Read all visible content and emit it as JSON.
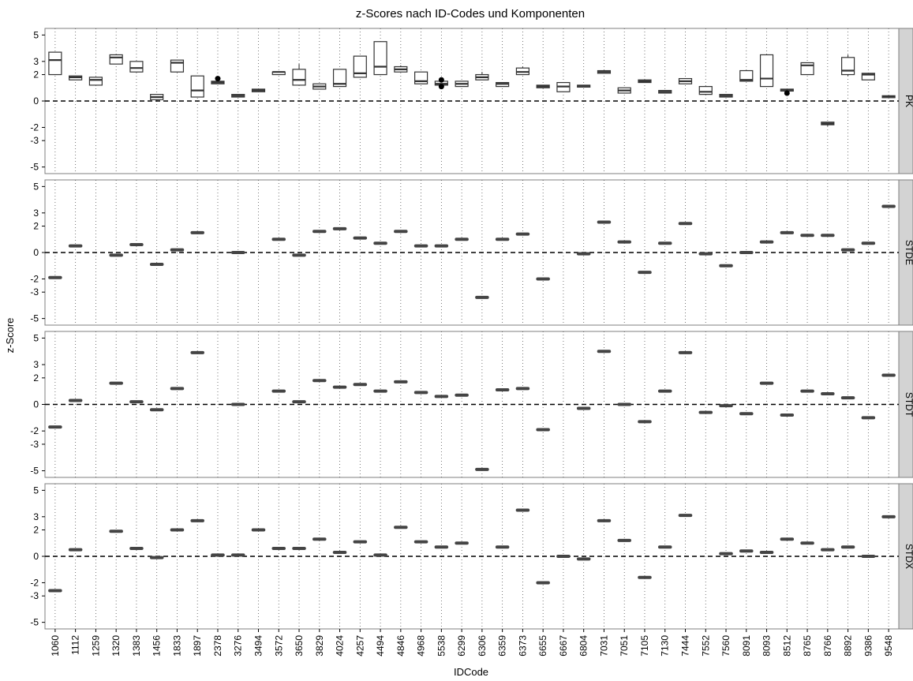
{
  "chart_data": {
    "type": "boxplot",
    "title": "z-Scores nach ID-Codes und Komponenten",
    "xlabel": "IDCode",
    "ylabel": "z-Score",
    "ylim": [
      -5.5,
      5.5
    ],
    "yticks": [
      5,
      3,
      2,
      0,
      -2,
      -3,
      -5
    ],
    "reference_line": 0,
    "categories": [
      "1060",
      "1112",
      "1259",
      "1320",
      "1383",
      "1456",
      "1833",
      "1897",
      "2378",
      "3276",
      "3494",
      "3572",
      "3650",
      "3829",
      "4024",
      "4257",
      "4494",
      "4846",
      "4968",
      "5538",
      "6299",
      "6306",
      "6359",
      "6373",
      "6655",
      "6667",
      "6804",
      "7031",
      "7051",
      "7105",
      "7130",
      "7444",
      "7552",
      "7560",
      "8091",
      "8093",
      "8512",
      "8765",
      "8766",
      "8892",
      "9386",
      "9548"
    ],
    "panels": [
      {
        "name": "PK",
        "boxes": [
          {
            "low": 2.0,
            "q1": 2.0,
            "median": 3.1,
            "q3": 3.7,
            "high": 3.7
          },
          {
            "low": 1.6,
            "q1": 1.6,
            "median": 1.8,
            "q3": 1.9,
            "high": 1.9
          },
          {
            "low": 1.2,
            "q1": 1.2,
            "median": 1.6,
            "q3": 1.8,
            "high": 1.8
          },
          {
            "low": 2.8,
            "q1": 2.8,
            "median": 3.3,
            "q3": 3.5,
            "high": 3.5
          },
          {
            "low": 2.2,
            "q1": 2.2,
            "median": 2.5,
            "q3": 3.0,
            "high": 3.0
          },
          {
            "low": 0.0,
            "q1": 0.1,
            "median": 0.3,
            "q3": 0.5,
            "high": 0.5
          },
          {
            "low": 2.2,
            "q1": 2.2,
            "median": 2.9,
            "q3": 3.1,
            "high": 3.1
          },
          {
            "low": 0.3,
            "q1": 0.3,
            "median": 0.8,
            "q3": 1.9,
            "high": 1.9
          },
          {
            "low": 1.3,
            "q1": 1.3,
            "median": 1.4,
            "q3": 1.5,
            "high": 1.5,
            "outliers": [
              1.7
            ]
          },
          {
            "low": 0.3,
            "q1": 0.3,
            "median": 0.4,
            "q3": 0.5,
            "high": 0.5
          },
          {
            "low": 0.7,
            "q1": 0.7,
            "median": 0.8,
            "q3": 0.9,
            "high": 0.9
          },
          {
            "low": 2.0,
            "q1": 2.0,
            "median": 2.2,
            "q3": 2.2,
            "high": 2.2
          },
          {
            "low": 1.2,
            "q1": 1.2,
            "median": 1.6,
            "q3": 2.4,
            "high": 2.8
          },
          {
            "low": 0.9,
            "q1": 0.9,
            "median": 1.1,
            "q3": 1.3,
            "high": 1.3
          },
          {
            "low": 1.1,
            "q1": 1.1,
            "median": 1.3,
            "q3": 2.4,
            "high": 2.4
          },
          {
            "low": 1.8,
            "q1": 1.8,
            "median": 2.1,
            "q3": 3.4,
            "high": 3.4
          },
          {
            "low": 2.0,
            "q1": 2.0,
            "median": 2.6,
            "q3": 4.5,
            "high": 4.5
          },
          {
            "low": 2.2,
            "q1": 2.2,
            "median": 2.4,
            "q3": 2.6,
            "high": 2.7
          },
          {
            "low": 1.3,
            "q1": 1.3,
            "median": 1.5,
            "q3": 2.2,
            "high": 2.2
          },
          {
            "low": 1.2,
            "q1": 1.2,
            "median": 1.3,
            "q3": 1.5,
            "high": 1.5,
            "outliers": [
              1.1,
              1.6
            ]
          },
          {
            "low": 1.1,
            "q1": 1.1,
            "median": 1.3,
            "q3": 1.5,
            "high": 1.5
          },
          {
            "low": 1.6,
            "q1": 1.6,
            "median": 1.8,
            "q3": 2.0,
            "high": 2.2
          },
          {
            "low": 1.1,
            "q1": 1.1,
            "median": 1.3,
            "q3": 1.4,
            "high": 1.4
          },
          {
            "low": 2.0,
            "q1": 2.0,
            "median": 2.2,
            "q3": 2.5,
            "high": 2.6
          },
          {
            "low": 1.0,
            "q1": 1.0,
            "median": 1.1,
            "q3": 1.2,
            "high": 1.2
          },
          {
            "low": 0.7,
            "q1": 0.7,
            "median": 1.1,
            "q3": 1.4,
            "high": 1.4
          },
          {
            "low": 1.1,
            "q1": 1.1,
            "median": 1.15,
            "q3": 1.2,
            "high": 1.2
          },
          {
            "low": 2.1,
            "q1": 2.1,
            "median": 2.2,
            "q3": 2.3,
            "high": 2.3
          },
          {
            "low": 0.6,
            "q1": 0.6,
            "median": 0.8,
            "q3": 1.0,
            "high": 1.0
          },
          {
            "low": 1.4,
            "q1": 1.4,
            "median": 1.5,
            "q3": 1.6,
            "high": 1.6
          },
          {
            "low": 0.6,
            "q1": 0.6,
            "median": 0.7,
            "q3": 0.8,
            "high": 0.8
          },
          {
            "low": 1.3,
            "q1": 1.3,
            "median": 1.5,
            "q3": 1.7,
            "high": 1.7
          },
          {
            "low": 0.5,
            "q1": 0.5,
            "median": 0.7,
            "q3": 1.1,
            "high": 1.1
          },
          {
            "low": 0.3,
            "q1": 0.3,
            "median": 0.4,
            "q3": 0.5,
            "high": 0.5
          },
          {
            "low": 1.5,
            "q1": 1.5,
            "median": 1.6,
            "q3": 2.3,
            "high": 2.3
          },
          {
            "low": 1.1,
            "q1": 1.1,
            "median": 1.7,
            "q3": 3.5,
            "high": 3.5
          },
          {
            "low": 0.8,
            "q1": 0.8,
            "median": 0.85,
            "q3": 0.9,
            "high": 0.9,
            "outliers": [
              0.6
            ]
          },
          {
            "low": 2.0,
            "q1": 2.0,
            "median": 2.7,
            "q3": 2.9,
            "high": 2.9
          },
          {
            "low": -1.9,
            "q1": -1.8,
            "median": -1.7,
            "q3": -1.6,
            "high": -1.6
          },
          {
            "low": 1.9,
            "q1": 2.0,
            "median": 2.3,
            "q3": 3.3,
            "high": 3.5
          },
          {
            "low": 1.6,
            "q1": 1.6,
            "median": 2.0,
            "q3": 2.1,
            "high": 2.1
          },
          {
            "low": 0.3,
            "q1": 0.3,
            "median": 0.35,
            "q3": 0.4,
            "high": 0.4
          }
        ]
      },
      {
        "name": "STDE",
        "values": [
          -1.9,
          0.5,
          null,
          -0.2,
          0.6,
          -0.9,
          0.2,
          1.5,
          null,
          0.0,
          null,
          1.0,
          -0.2,
          1.6,
          1.8,
          1.1,
          0.7,
          1.6,
          0.5,
          0.5,
          1.0,
          -3.4,
          1.0,
          1.4,
          -2.0,
          null,
          -0.1,
          2.3,
          0.8,
          -1.5,
          0.7,
          2.2,
          -0.1,
          -1.0,
          0.0,
          0.8,
          1.5,
          1.3,
          1.3,
          0.2,
          0.7,
          3.5
        ]
      },
      {
        "name": "STDT",
        "values": [
          -1.7,
          0.3,
          null,
          1.6,
          0.2,
          -0.4,
          1.2,
          3.9,
          null,
          0.0,
          null,
          1.0,
          0.2,
          1.8,
          1.3,
          1.5,
          1.0,
          1.7,
          0.9,
          0.6,
          0.7,
          -4.9,
          1.1,
          1.2,
          -1.9,
          null,
          -0.3,
          4.0,
          0.0,
          -1.3,
          1.0,
          3.9,
          -0.6,
          -0.1,
          -0.7,
          1.6,
          -0.8,
          1.0,
          0.8,
          0.5,
          -1.0,
          2.2
        ]
      },
      {
        "name": "STDX",
        "values": [
          -2.6,
          0.5,
          null,
          1.9,
          0.6,
          -0.1,
          2.0,
          2.7,
          0.1,
          0.1,
          2.0,
          0.6,
          0.6,
          1.3,
          0.3,
          1.1,
          0.1,
          2.2,
          1.1,
          0.7,
          1.0,
          null,
          0.7,
          3.5,
          -2.0,
          0.0,
          -0.2,
          2.7,
          1.2,
          -1.6,
          0.7,
          3.1,
          null,
          0.2,
          0.4,
          0.3,
          1.3,
          1.0,
          0.5,
          0.7,
          0.0,
          3.0
        ]
      }
    ]
  }
}
